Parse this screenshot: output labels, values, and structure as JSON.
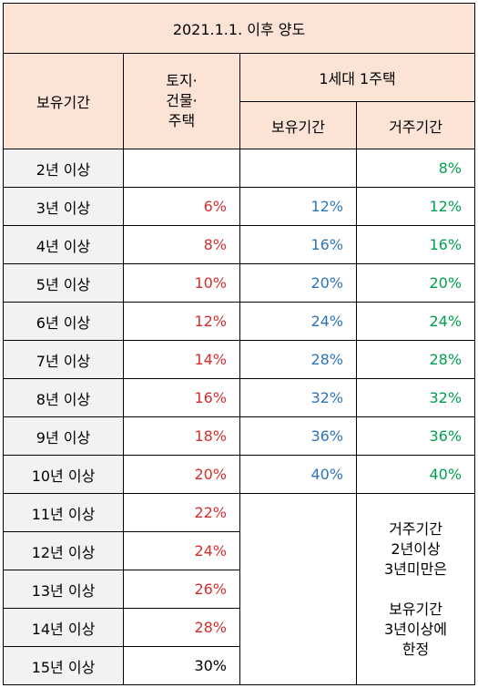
{
  "title": "2021.1.1. 이후 양도",
  "headers": {
    "holding_period": "보유기간",
    "land_building_house": [
      "토지·",
      "건물·",
      "주택"
    ],
    "one_household": "1세대 1주택",
    "sub_holding": "보유기간",
    "sub_residence": "거주기간"
  },
  "rows": [
    {
      "label": "2년 이상",
      "general": "",
      "holding": "",
      "residence": "8%"
    },
    {
      "label": "3년 이상",
      "general": "6%",
      "holding": "12%",
      "residence": "12%"
    },
    {
      "label": "4년 이상",
      "general": "8%",
      "holding": "16%",
      "residence": "16%"
    },
    {
      "label": "5년 이상",
      "general": "10%",
      "holding": "20%",
      "residence": "20%"
    },
    {
      "label": "6년 이상",
      "general": "12%",
      "holding": "24%",
      "residence": "24%"
    },
    {
      "label": "7년 이상",
      "general": "14%",
      "holding": "28%",
      "residence": "28%"
    },
    {
      "label": "8년 이상",
      "general": "16%",
      "holding": "32%",
      "residence": "32%"
    },
    {
      "label": "9년 이상",
      "general": "18%",
      "holding": "36%",
      "residence": "36%"
    },
    {
      "label": "10년 이상",
      "general": "20%",
      "holding": "40%",
      "residence": "40%"
    },
    {
      "label": "11년 이상",
      "general": "22%"
    },
    {
      "label": "12년 이상",
      "general": "24%"
    },
    {
      "label": "13년 이상",
      "general": "26%"
    },
    {
      "label": "14년 이상",
      "general": "28%"
    },
    {
      "label": "15년 이상",
      "general": "30%"
    }
  ],
  "note": [
    "거주기간",
    "2년이상",
    "3년미만은",
    "",
    "보유기간",
    "3년이상에",
    "한정"
  ],
  "colors": {
    "header_bg": "#fbe4d5",
    "label_bg": "#f2f2f2",
    "general_red": "#d22f2f",
    "holding_blue": "#2e75b6",
    "residence_green": "#00a050"
  }
}
